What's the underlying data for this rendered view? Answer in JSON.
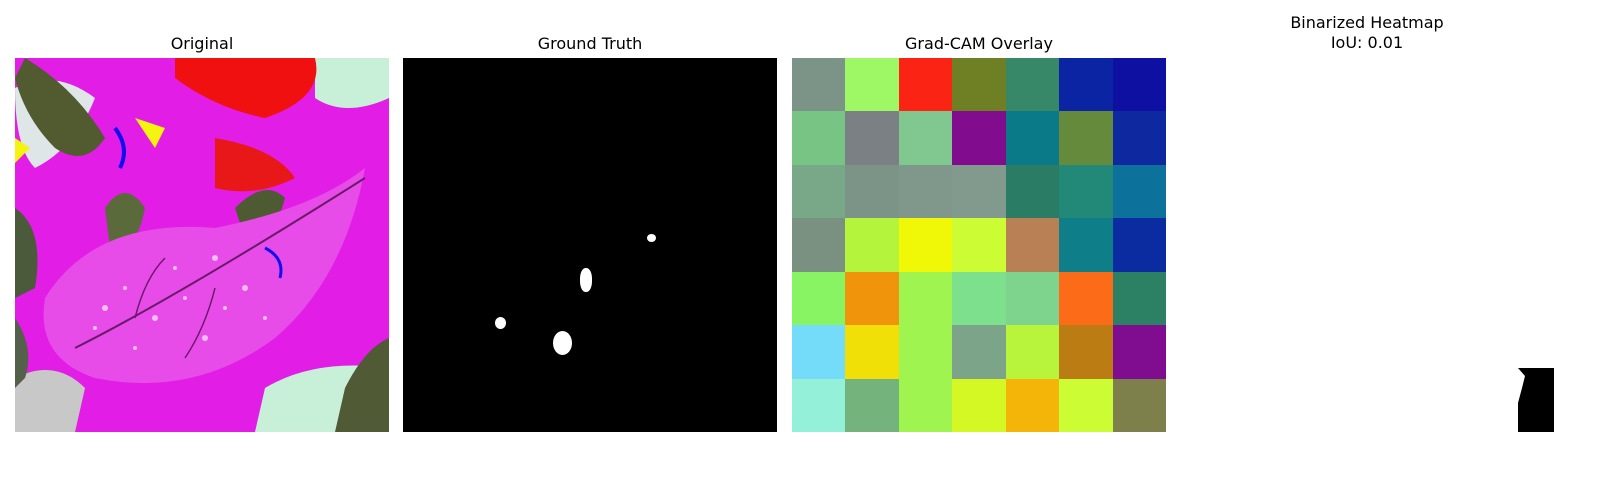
{
  "panels": {
    "original": {
      "title": "Original"
    },
    "ground_truth": {
      "title": "Ground Truth"
    },
    "gradcam": {
      "title": "Grad-CAM Overlay",
      "grid": [
        [
          "#7c9488",
          "#9ef866",
          "#fb2414",
          "#6f8024",
          "#368868",
          "#0a24a4",
          "#0e10a2"
        ],
        [
          "#78c484",
          "#7a8084",
          "#80c890",
          "#820c8e",
          "#0a7a88",
          "#668a3c",
          "#0e28a0"
        ],
        [
          "#78a888",
          "#7c9488",
          "#80988c",
          "#829a8e",
          "#2a7c64",
          "#228878",
          "#0c729c"
        ],
        [
          "#7a9080",
          "#b4f43c",
          "#f0f808",
          "#ccfc34",
          "#b88054",
          "#0e7e88",
          "#0a2ca0"
        ],
        [
          "#88f464",
          "#f0940c",
          "#a0f450",
          "#7ce08c",
          "#7ed48c",
          "#fc6c18",
          "#2c8064"
        ],
        [
          "#74dcf8",
          "#f0e008",
          "#a0f450",
          "#7ca488",
          "#b8f43c",
          "#bc7c14",
          "#800c90"
        ],
        [
          "#94f0d8",
          "#74b47c",
          "#a0f450",
          "#d4f824",
          "#f4b408",
          "#ccfc34",
          "#7e804c"
        ]
      ]
    },
    "binarized": {
      "title_line1": "Binarized Heatmap",
      "title_line2": "IoU: 0.01"
    }
  }
}
